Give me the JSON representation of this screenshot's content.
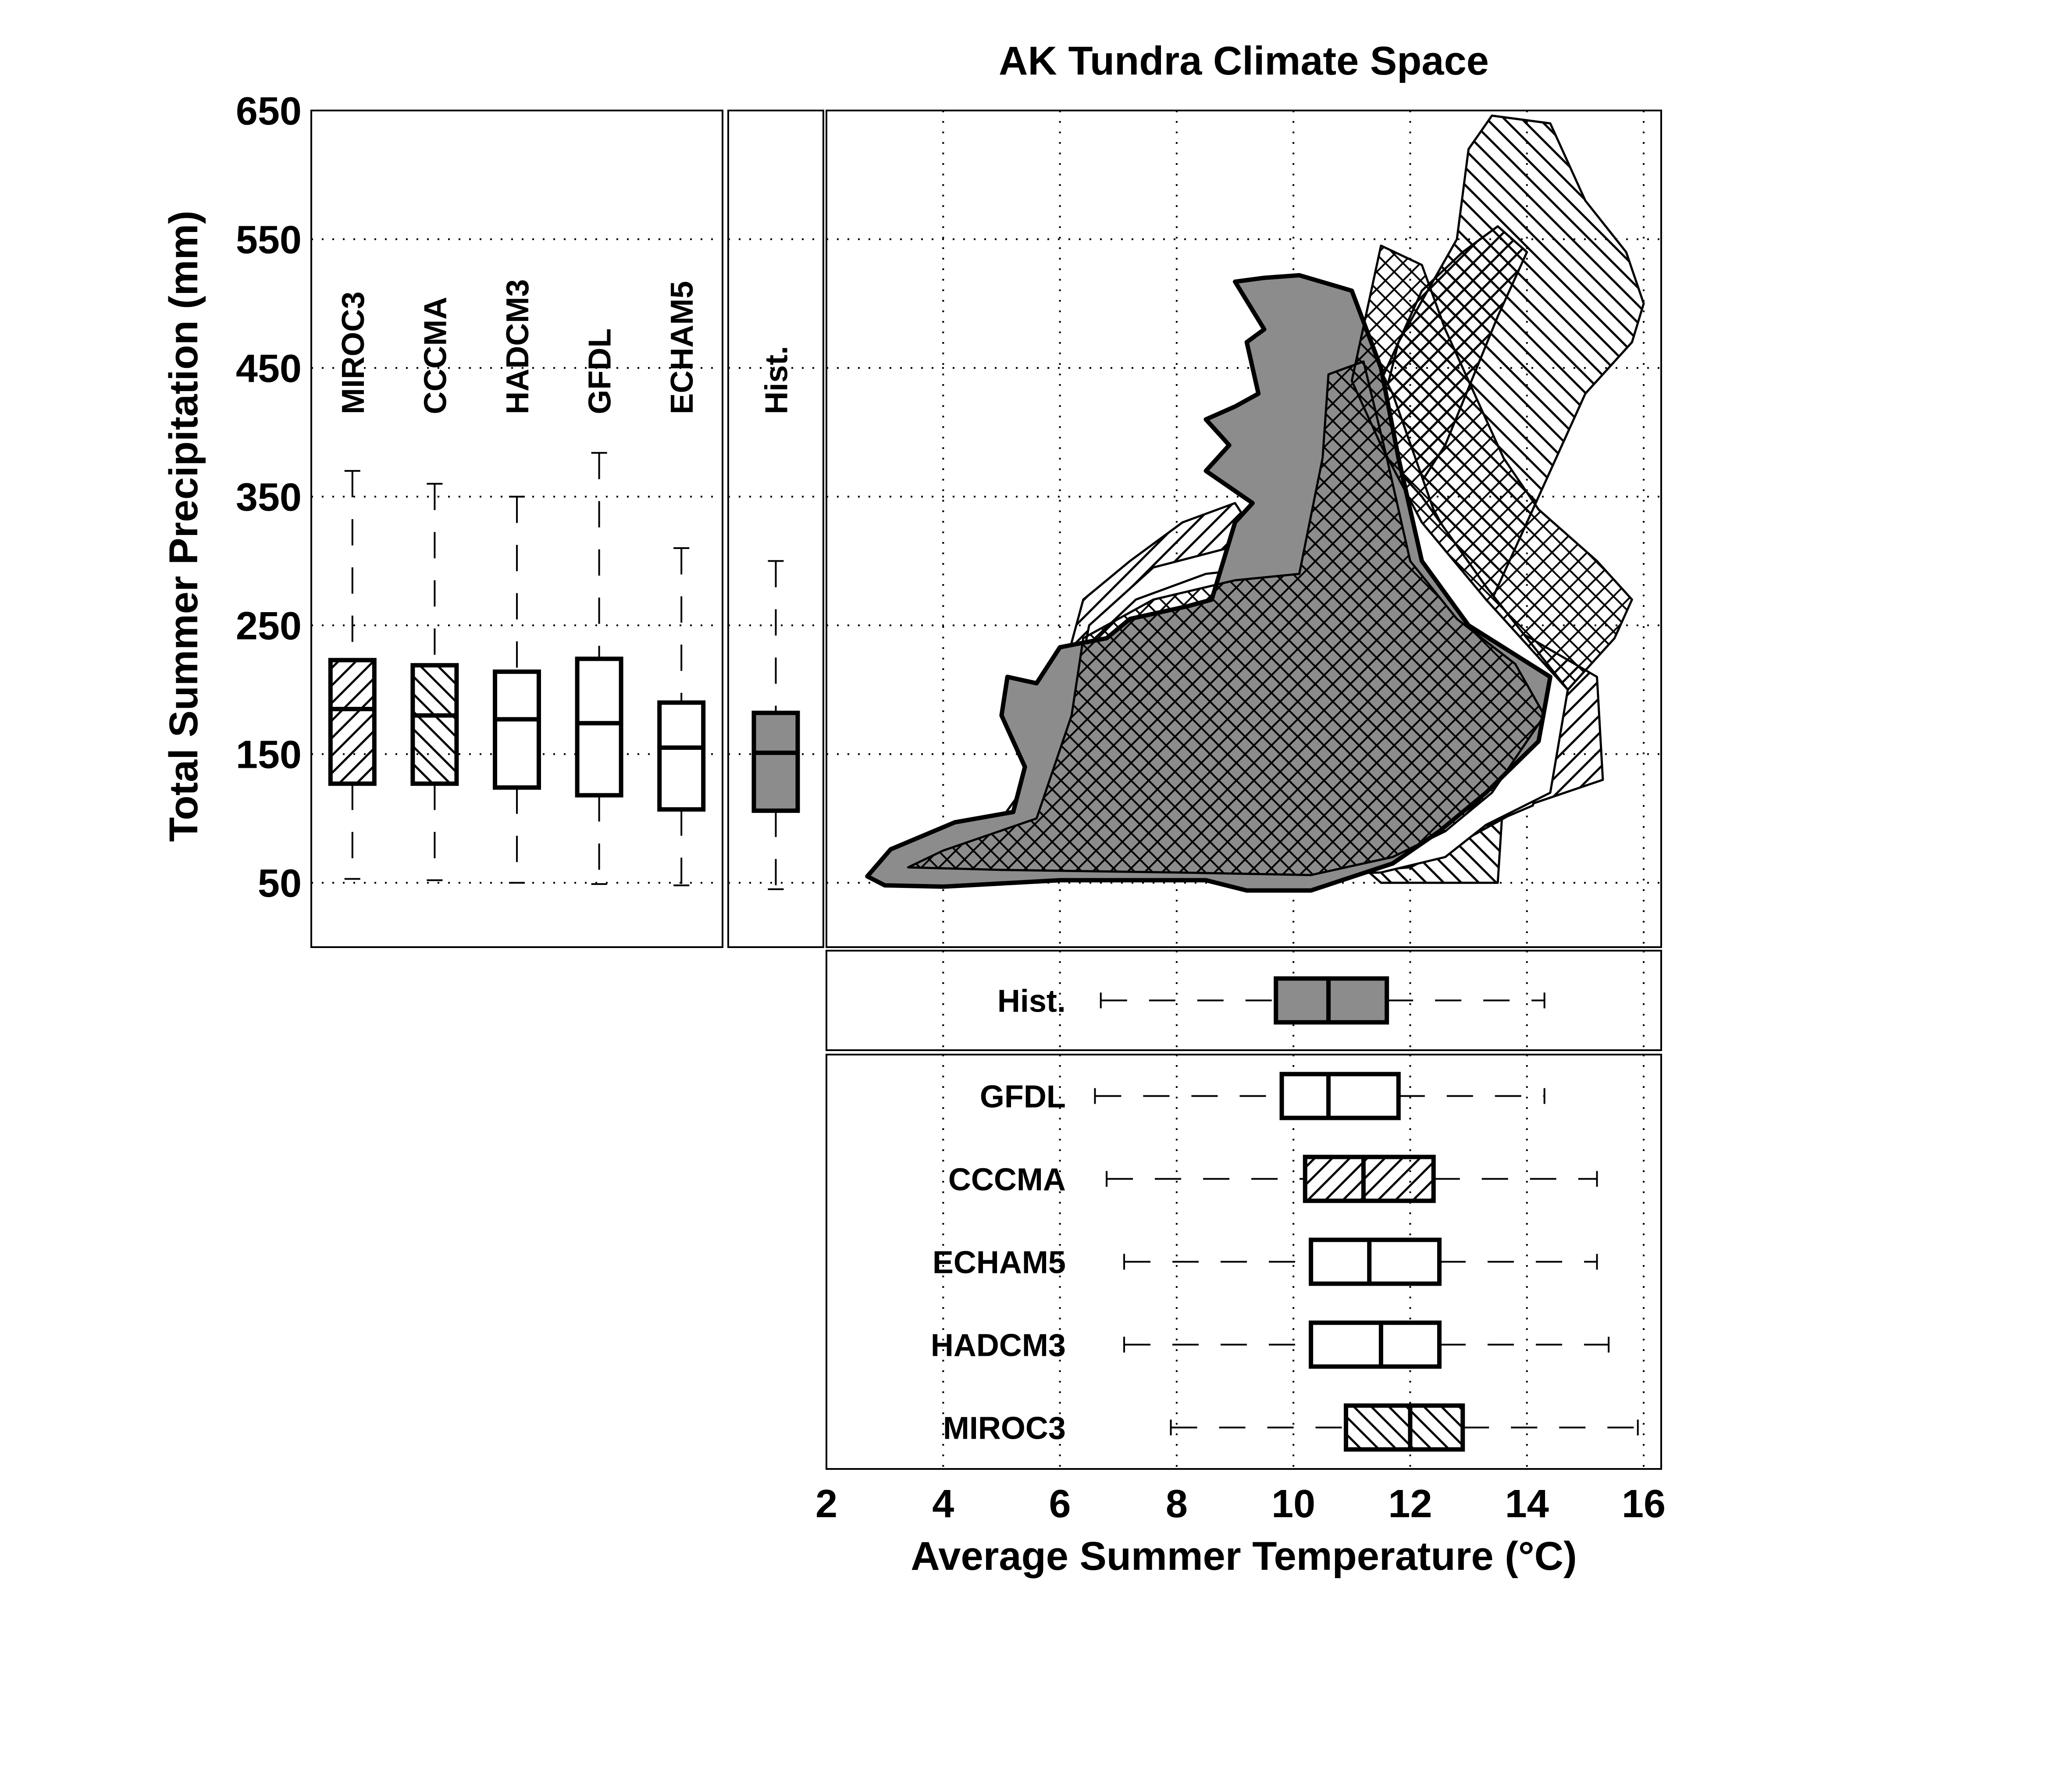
{
  "colors": {
    "hist_fill": "#8c8c8c",
    "ink": "#000000",
    "grid": "#000000",
    "background": "#ffffff"
  },
  "chart_data": [
    {
      "type": "area",
      "panel": "climate-space",
      "title": "AK Tundra Climate Space",
      "xlabel": "Average Summer Temperature (°C)",
      "ylabel": "Total Summer Precipitation (mm)",
      "xlim": [
        2,
        16.3
      ],
      "ylim": [
        0,
        650
      ],
      "xticks": [
        "2",
        "4",
        "6",
        "8",
        "10",
        "12",
        "14",
        "16"
      ],
      "yticks": [
        "50",
        "150",
        "250",
        "350",
        "450",
        "550",
        "650"
      ],
      "grid": true,
      "series": [
        {
          "id": "miroc3-diag-back",
          "hatch": "diag-back",
          "points": [
            [
              13.5,
              50
            ],
            [
              11.5,
              50
            ],
            [
              11.0,
              70
            ],
            [
              12.0,
              110
            ],
            [
              13.2,
              180
            ],
            [
              13.3,
              260
            ],
            [
              14.0,
              330
            ],
            [
              14.6,
              390
            ],
            [
              15.0,
              430
            ],
            [
              15.8,
              470
            ],
            [
              16.0,
              500
            ],
            [
              15.7,
              540
            ],
            [
              15.0,
              580
            ],
            [
              14.4,
              640
            ],
            [
              13.4,
              646
            ],
            [
              13.0,
              620
            ],
            [
              12.8,
              550
            ],
            [
              11.8,
              470
            ],
            [
              11.3,
              380
            ],
            [
              11.6,
              300
            ],
            [
              12.8,
              210
            ],
            [
              13.6,
              120
            ]
          ]
        },
        {
          "id": "cccma-diag-fwd",
          "hatch": "diag-fwd",
          "points": [
            [
              2.9,
              62
            ],
            [
              3.3,
              75
            ],
            [
              5.0,
              100
            ],
            [
              5.8,
              150
            ],
            [
              6.1,
              220
            ],
            [
              6.4,
              270
            ],
            [
              7.2,
              300
            ],
            [
              8.1,
              330
            ],
            [
              9.0,
              345
            ],
            [
              9.5,
              310
            ],
            [
              10.6,
              290
            ],
            [
              11.6,
              320
            ],
            [
              12.6,
              390
            ],
            [
              13.5,
              490
            ],
            [
              14.0,
              540
            ],
            [
              13.5,
              560
            ],
            [
              12.9,
              540
            ],
            [
              12.2,
              510
            ],
            [
              11.5,
              440
            ],
            [
              12.0,
              340
            ],
            [
              13.3,
              260
            ],
            [
              15.2,
              210
            ],
            [
              15.3,
              130
            ],
            [
              14.0,
              110
            ],
            [
              12.8,
              80
            ],
            [
              12.0,
              62
            ],
            [
              10.0,
              55
            ],
            [
              7.0,
              52
            ],
            [
              4.0,
              55
            ]
          ]
        },
        {
          "id": "gfdl-plain",
          "hatch": "none",
          "points": [
            [
              3.1,
              60
            ],
            [
              3.4,
              78
            ],
            [
              5.5,
              110
            ],
            [
              6.2,
              180
            ],
            [
              6.5,
              250
            ],
            [
              7.6,
              295
            ],
            [
              9.3,
              315
            ],
            [
              10.2,
              330
            ],
            [
              10.4,
              420
            ],
            [
              10.3,
              480
            ],
            [
              10.9,
              500
            ],
            [
              11.7,
              430
            ],
            [
              12.4,
              340
            ],
            [
              13.5,
              250
            ],
            [
              14.5,
              180
            ],
            [
              14.1,
              110
            ],
            [
              12.8,
              85
            ],
            [
              11.8,
              65
            ],
            [
              9.0,
              57
            ],
            [
              6.0,
              55
            ]
          ]
        },
        {
          "id": "echam5-plain",
          "hatch": "none",
          "points": [
            [
              3.3,
              60
            ],
            [
              3.6,
              75
            ],
            [
              5.2,
              95
            ],
            [
              6.1,
              160
            ],
            [
              6.6,
              240
            ],
            [
              7.3,
              270
            ],
            [
              8.5,
              290
            ],
            [
              9.5,
              295
            ],
            [
              10.5,
              275
            ],
            [
              10.7,
              390
            ],
            [
              11.1,
              405
            ],
            [
              12.2,
              350
            ],
            [
              13.3,
              280
            ],
            [
              14.7,
              200
            ],
            [
              14.4,
              120
            ],
            [
              13.3,
              95
            ],
            [
              12.6,
              70
            ],
            [
              11.5,
              58
            ],
            [
              9.3,
              55
            ],
            [
              6.8,
              52
            ]
          ]
        },
        {
          "id": "hist-fill",
          "hatch": "solid",
          "points": [
            [
              2.7,
              55
            ],
            [
              3.1,
              76
            ],
            [
              4.2,
              97
            ],
            [
              5.2,
              105
            ],
            [
              5.4,
              140
            ],
            [
              5.0,
              180
            ],
            [
              5.1,
              210
            ],
            [
              5.6,
              205
            ],
            [
              6.0,
              233
            ],
            [
              6.8,
              240
            ],
            [
              7.2,
              255
            ],
            [
              8.2,
              265
            ],
            [
              8.6,
              270
            ],
            [
              9.0,
              330
            ],
            [
              9.3,
              345
            ],
            [
              8.5,
              370
            ],
            [
              8.9,
              390
            ],
            [
              8.5,
              410
            ],
            [
              9.0,
              420
            ],
            [
              9.4,
              430
            ],
            [
              9.2,
              470
            ],
            [
              9.5,
              480
            ],
            [
              9.0,
              517
            ],
            [
              9.5,
              520
            ],
            [
              10.1,
              522
            ],
            [
              11.0,
              510
            ],
            [
              11.5,
              450
            ],
            [
              11.8,
              380
            ],
            [
              12.2,
              300
            ],
            [
              13.0,
              250
            ],
            [
              14.4,
              210
            ],
            [
              14.2,
              160
            ],
            [
              13.3,
              120
            ],
            [
              12.5,
              90
            ],
            [
              11.7,
              65
            ],
            [
              10.3,
              44
            ],
            [
              9.2,
              44
            ],
            [
              8.5,
              52
            ],
            [
              6.0,
              52
            ],
            [
              4.0,
              47
            ],
            [
              3.0,
              48
            ]
          ]
        },
        {
          "id": "crosshatch-overlap",
          "hatch": "cross",
          "points": [
            [
              3.4,
              62
            ],
            [
              4.0,
              75
            ],
            [
              5.6,
              100
            ],
            [
              6.2,
              180
            ],
            [
              6.4,
              240
            ],
            [
              7.6,
              270
            ],
            [
              9.0,
              285
            ],
            [
              10.1,
              290
            ],
            [
              10.5,
              380
            ],
            [
              10.6,
              445
            ],
            [
              11.2,
              455
            ],
            [
              11.6,
              380
            ],
            [
              12.0,
              300
            ],
            [
              12.8,
              255
            ],
            [
              13.8,
              220
            ],
            [
              14.3,
              180
            ],
            [
              13.4,
              120
            ],
            [
              12.6,
              90
            ],
            [
              11.7,
              70
            ],
            [
              10.3,
              56
            ],
            [
              8.0,
              58
            ],
            [
              5.0,
              60
            ]
          ]
        },
        {
          "id": "cross-upper",
          "hatch": "cross",
          "points": [
            [
              11.0,
              440
            ],
            [
              11.5,
              545
            ],
            [
              12.2,
              530
            ],
            [
              12.6,
              480
            ],
            [
              13.2,
              420
            ],
            [
              13.6,
              380
            ],
            [
              14.2,
              340
            ],
            [
              15.2,
              300
            ],
            [
              15.8,
              270
            ],
            [
              15.5,
              240
            ],
            [
              14.7,
              200
            ],
            [
              13.3,
              270
            ],
            [
              12.2,
              330
            ],
            [
              11.5,
              390
            ]
          ]
        }
      ]
    },
    {
      "type": "box",
      "panel": "precip-gcm-boxes",
      "ylim": [
        0,
        650
      ],
      "boxes": [
        {
          "name": "MIROC3",
          "hatch": "diag-fwd",
          "whisker_low": 53,
          "q1": 127,
          "median": 185,
          "q3": 223,
          "whisker_high": 370
        },
        {
          "name": "CCCMA",
          "hatch": "diag-back",
          "whisker_low": 52,
          "q1": 127,
          "median": 180,
          "q3": 219,
          "whisker_high": 360
        },
        {
          "name": "HADCM3",
          "hatch": "none",
          "whisker_low": 50,
          "q1": 124,
          "median": 177,
          "q3": 214,
          "whisker_high": 350
        },
        {
          "name": "GFDL",
          "hatch": "none",
          "whisker_low": 49,
          "q1": 118,
          "median": 174,
          "q3": 224,
          "whisker_high": 384
        },
        {
          "name": "ECHAM5",
          "hatch": "none",
          "whisker_low": 48,
          "q1": 107,
          "median": 155,
          "q3": 190,
          "whisker_high": 310
        }
      ]
    },
    {
      "type": "box",
      "panel": "precip-hist-box",
      "ylim": [
        0,
        650
      ],
      "boxes": [
        {
          "name": "Hist.",
          "hatch": "solid",
          "whisker_low": 45,
          "q1": 106,
          "median": 151,
          "q3": 182,
          "whisker_high": 300
        }
      ]
    },
    {
      "type": "box",
      "panel": "temp-hist-box",
      "xlim": [
        2,
        16.3
      ],
      "boxes": [
        {
          "name": "Hist.",
          "hatch": "solid",
          "whisker_low": 6.7,
          "q1": 9.7,
          "median": 10.6,
          "q3": 11.6,
          "whisker_high": 14.3
        }
      ]
    },
    {
      "type": "box",
      "panel": "temp-gcm-boxes",
      "xlim": [
        2,
        16.3
      ],
      "boxes": [
        {
          "name": "GFDL",
          "hatch": "none",
          "whisker_low": 6.6,
          "q1": 9.8,
          "median": 10.6,
          "q3": 11.8,
          "whisker_high": 14.3
        },
        {
          "name": "CCCMA",
          "hatch": "diag-fwd",
          "whisker_low": 6.8,
          "q1": 10.2,
          "median": 11.2,
          "q3": 12.4,
          "whisker_high": 15.2
        },
        {
          "name": "ECHAM5",
          "hatch": "none",
          "whisker_low": 7.1,
          "q1": 10.3,
          "median": 11.3,
          "q3": 12.5,
          "whisker_high": 15.2
        },
        {
          "name": "HADCM3",
          "hatch": "none",
          "whisker_low": 7.1,
          "q1": 10.3,
          "median": 11.5,
          "q3": 12.5,
          "whisker_high": 15.4
        },
        {
          "name": "MIROC3",
          "hatch": "diag-back",
          "whisker_low": 7.9,
          "q1": 10.9,
          "median": 12.0,
          "q3": 12.9,
          "whisker_high": 15.9
        }
      ]
    }
  ]
}
